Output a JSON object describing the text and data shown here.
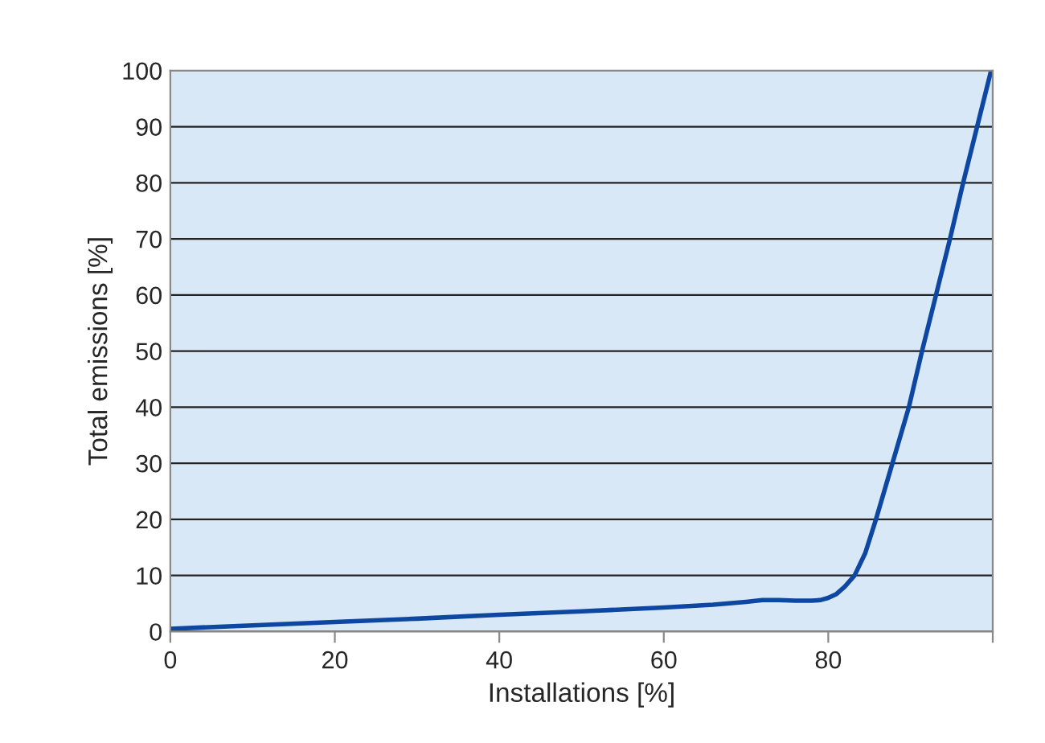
{
  "chart_data": {
    "type": "line",
    "xlabel": "Installations [%]",
    "ylabel": "Total emissions [%]",
    "x": [
      0,
      10,
      20,
      30,
      40,
      50,
      60,
      66,
      70,
      72,
      74,
      76,
      78,
      79,
      80,
      81,
      82,
      83.2,
      84.5,
      85.8,
      87.8,
      89.8,
      91.4,
      93.1,
      94.8,
      96.4,
      98.1,
      99.8
    ],
    "series": [
      {
        "color": "#0d47a1",
        "values": [
          0.5,
          1.1,
          1.7,
          2.3,
          3,
          3.6,
          4.3,
          4.8,
          5.3,
          5.6,
          5.6,
          5.5,
          5.5,
          5.6,
          6,
          6.7,
          8,
          10,
          14,
          20,
          30,
          40,
          50,
          60,
          70,
          80,
          90,
          100
        ]
      }
    ],
    "xlim": [
      0,
      100
    ],
    "ylim": [
      0,
      100
    ],
    "xticks": [
      0,
      20,
      40,
      60,
      80,
      {
        "value": 100,
        "label": null
      }
    ],
    "yticks": [
      0,
      10,
      20,
      30,
      40,
      50,
      60,
      70,
      80,
      90,
      100
    ],
    "grid": "y",
    "marker": "none",
    "line_style": "solid"
  }
}
